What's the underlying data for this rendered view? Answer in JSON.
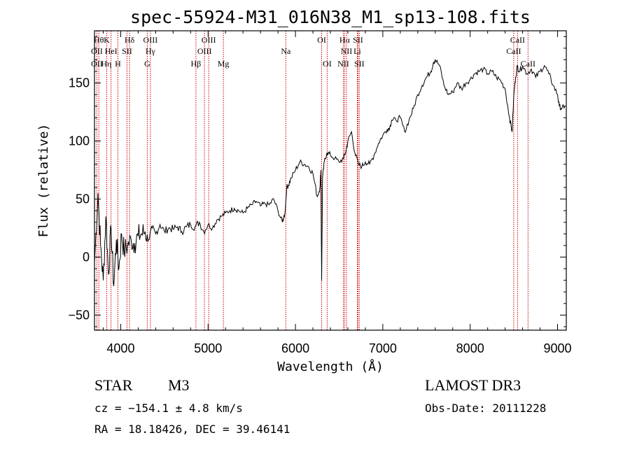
{
  "chart_data": {
    "type": "line",
    "title": "spec-55924-M31_016N38_M1_sp13-108.fits",
    "xlabel": "Wavelength (Å)",
    "ylabel": "Flux (relative)",
    "xlim": [
      3700,
      9100
    ],
    "ylim": [
      -63,
      195
    ],
    "xticks": [
      4000,
      5000,
      6000,
      7000,
      8000,
      9000
    ],
    "yticks": [
      -50,
      0,
      50,
      100,
      150
    ],
    "grid": false,
    "spectrum": {
      "x": [
        3700,
        3740,
        3770,
        3800,
        3830,
        3860,
        3890,
        3920,
        3950,
        3980,
        4010,
        4040,
        4080,
        4120,
        4160,
        4200,
        4240,
        4280,
        4320,
        4360,
        4400,
        4450,
        4500,
        4550,
        4600,
        4650,
        4700,
        4750,
        4800,
        4850,
        4900,
        4950,
        5000,
        5050,
        5100,
        5150,
        5200,
        5250,
        5300,
        5350,
        5400,
        5450,
        5500,
        5550,
        5600,
        5650,
        5700,
        5750,
        5800,
        5850,
        5880,
        5900,
        5920,
        5950,
        6000,
        6050,
        6100,
        6150,
        6200,
        6250,
        6280,
        6290,
        6300,
        6310,
        6330,
        6360,
        6400,
        6450,
        6500,
        6550,
        6580,
        6600,
        6640,
        6680,
        6720,
        6760,
        6800,
        6850,
        6900,
        6950,
        7000,
        7050,
        7080,
        7100,
        7150,
        7200,
        7250,
        7300,
        7350,
        7400,
        7450,
        7500,
        7550,
        7580,
        7600,
        7650,
        7700,
        7750,
        7800,
        7850,
        7900,
        7950,
        8000,
        8050,
        8100,
        8150,
        8200,
        8250,
        8300,
        8350,
        8400,
        8450,
        8480,
        8500,
        8520,
        8540,
        8560,
        8600,
        8650,
        8700,
        8750,
        8800,
        8850,
        8900,
        8950,
        9000,
        9020,
        9050,
        9080
      ],
      "y": [
        -5,
        55,
        10,
        -20,
        35,
        -15,
        25,
        -25,
        15,
        -10,
        20,
        5,
        10,
        15,
        12,
        18,
        20,
        22,
        15,
        25,
        20,
        28,
        22,
        25,
        24,
        26,
        22,
        26,
        28,
        26,
        30,
        22,
        28,
        25,
        32,
        35,
        38,
        40,
        42,
        40,
        38,
        42,
        45,
        48,
        44,
        46,
        45,
        50,
        40,
        30,
        38,
        60,
        62,
        68,
        75,
        82,
        80,
        78,
        72,
        52,
        60,
        75,
        -20,
        68,
        82,
        90,
        88,
        85,
        82,
        85,
        92,
        100,
        108,
        90,
        80,
        78,
        82,
        80,
        88,
        98,
        105,
        110,
        112,
        118,
        118,
        120,
        108,
        118,
        128,
        140,
        148,
        155,
        160,
        168,
        170,
        165,
        148,
        140,
        142,
        150,
        145,
        150,
        153,
        158,
        160,
        162,
        158,
        160,
        155,
        152,
        145,
        120,
        108,
        140,
        155,
        165,
        160,
        165,
        158,
        162,
        155,
        160,
        165,
        158,
        148,
        140,
        130,
        128,
        130
      ]
    },
    "lines": [
      {
        "wl": 3750,
        "label": "Hθ",
        "row": 1
      },
      {
        "wl": 3840,
        "label": "K",
        "row": 1
      },
      {
        "wl": 4101,
        "label": "Hδ",
        "row": 1
      },
      {
        "wl": 4340,
        "label": "OIII",
        "row": 1
      },
      {
        "wl": 5007,
        "label": "OIII",
        "row": 1
      },
      {
        "wl": 6300,
        "label": "OI",
        "row": 1
      },
      {
        "wl": 6563,
        "label": "Hα",
        "row": 1
      },
      {
        "wl": 6716,
        "label": "SII",
        "row": 1
      },
      {
        "wl": 8542,
        "label": "CaII",
        "row": 1
      },
      {
        "wl": 3727,
        "label": "OII",
        "row": 2
      },
      {
        "wl": 3889,
        "label": "HeI",
        "row": 2
      },
      {
        "wl": 4072,
        "label": "SII",
        "row": 2
      },
      {
        "wl": 4340,
        "label": "Hγ",
        "row": 2
      },
      {
        "wl": 4959,
        "label": "OIII",
        "row": 2
      },
      {
        "wl": 5890,
        "label": "Na",
        "row": 2
      },
      {
        "wl": 6584,
        "label": "NII",
        "row": 2
      },
      {
        "wl": 6708,
        "label": "Li",
        "row": 2
      },
      {
        "wl": 8498,
        "label": "CaII",
        "row": 2
      },
      {
        "wl": 3727,
        "label": "OII",
        "row": 3
      },
      {
        "wl": 3835,
        "label": "Hη",
        "row": 3
      },
      {
        "wl": 3968,
        "label": "H",
        "row": 3
      },
      {
        "wl": 4304,
        "label": "G",
        "row": 3
      },
      {
        "wl": 4861,
        "label": "Hβ",
        "row": 3
      },
      {
        "wl": 5175,
        "label": "Mg",
        "row": 3
      },
      {
        "wl": 6363,
        "label": "OI",
        "row": 3
      },
      {
        "wl": 6548,
        "label": "NII",
        "row": 3
      },
      {
        "wl": 6731,
        "label": "SII",
        "row": 3
      },
      {
        "wl": 8662,
        "label": "CaII",
        "row": 3
      }
    ],
    "line_color": "#cc0000"
  },
  "info": {
    "class": "STAR",
    "subclass": "M3",
    "survey": "LAMOST DR3",
    "cz": "cz = −154.1 ± 4.8 km/s",
    "obs_date": "Obs-Date: 20111228",
    "radec": "RA =  18.18426, DEC =  39.46141"
  }
}
